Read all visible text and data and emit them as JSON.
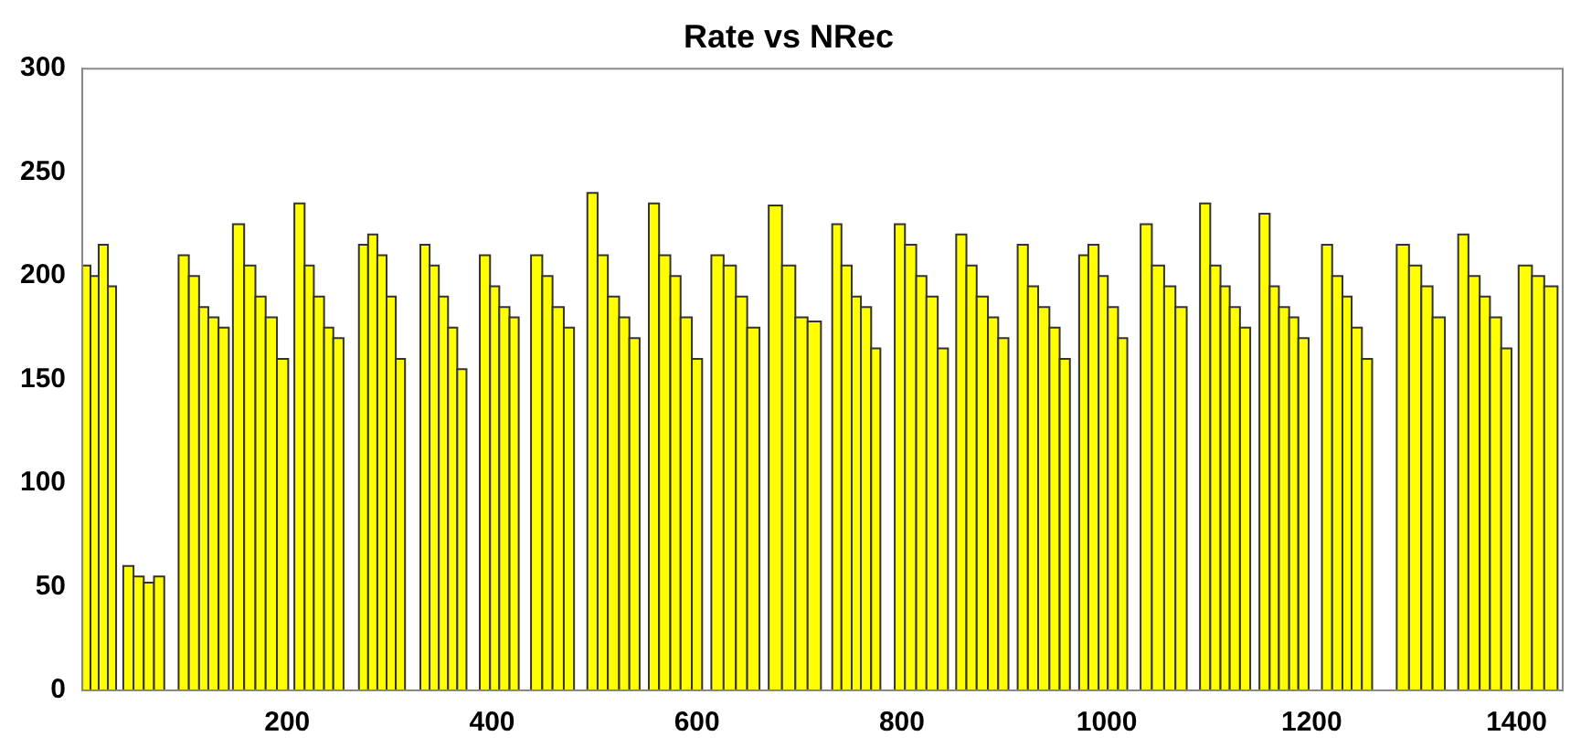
{
  "chart_data": {
    "type": "histogram",
    "title": "Rate vs NRec",
    "color": "#ffff00",
    "bins": [
      0,
      8,
      16,
      25,
      33,
      40,
      50,
      60,
      70,
      80,
      94,
      104,
      114,
      123,
      133,
      143,
      147,
      158,
      169,
      179,
      190,
      201,
      207,
      217,
      226,
      236,
      245,
      255,
      270,
      279,
      288,
      297,
      306,
      315,
      330,
      339,
      348,
      357,
      366,
      375,
      388,
      398,
      407,
      417,
      426,
      438,
      449,
      459,
      470,
      480,
      493,
      503,
      513,
      524,
      534,
      544,
      553,
      563,
      574,
      584,
      595,
      605,
      614,
      626,
      638,
      649,
      661,
      670,
      683,
      696,
      708,
      721,
      732,
      741,
      751,
      760,
      770,
      779,
      793,
      803,
      814,
      824,
      835,
      845,
      853,
      863,
      873,
      884,
      894,
      904,
      913,
      923,
      933,
      944,
      954,
      964,
      973,
      982,
      992,
      1001,
      1011,
      1020,
      1033,
      1044,
      1056,
      1067,
      1078,
      1091,
      1101,
      1111,
      1120,
      1130,
      1140,
      1149,
      1159,
      1168,
      1178,
      1187,
      1197,
      1210,
      1220,
      1230,
      1239,
      1249,
      1259,
      1283,
      1295,
      1307,
      1318,
      1330,
      1343,
      1353,
      1364,
      1374,
      1385,
      1395,
      1402,
      1415,
      1427,
      1440
    ],
    "values": [
      205,
      200,
      215,
      195,
      0,
      60,
      55,
      52,
      55,
      0,
      210,
      200,
      185,
      180,
      175,
      0,
      225,
      205,
      190,
      180,
      160,
      0,
      235,
      205,
      190,
      175,
      170,
      0,
      215,
      220,
      210,
      190,
      160,
      0,
      215,
      205,
      190,
      175,
      155,
      0,
      210,
      195,
      185,
      180,
      0,
      210,
      200,
      185,
      175,
      0,
      240,
      210,
      190,
      180,
      170,
      0,
      235,
      210,
      200,
      180,
      160,
      0,
      210,
      205,
      190,
      175,
      0,
      234,
      205,
      180,
      178,
      0,
      225,
      205,
      190,
      185,
      165,
      0,
      225,
      215,
      200,
      190,
      165,
      0,
      220,
      205,
      190,
      180,
      170,
      0,
      215,
      195,
      185,
      175,
      160,
      0,
      210,
      215,
      200,
      185,
      170,
      0,
      225,
      205,
      195,
      185,
      0,
      235,
      205,
      195,
      185,
      175,
      0,
      230,
      195,
      185,
      180,
      170,
      0,
      215,
      200,
      190,
      175,
      160,
      0,
      215,
      205,
      195,
      180,
      0,
      220,
      200,
      190,
      180,
      165,
      0,
      205,
      200,
      195
    ],
    "xlim": [
      0,
      1445
    ],
    "xticks": [
      200,
      400,
      600,
      800,
      1000,
      1200,
      1400
    ],
    "ylim": [
      0,
      300
    ],
    "yticks": [
      0,
      50,
      100,
      150,
      200,
      250,
      300
    ],
    "grid": false,
    "legend": false
  }
}
